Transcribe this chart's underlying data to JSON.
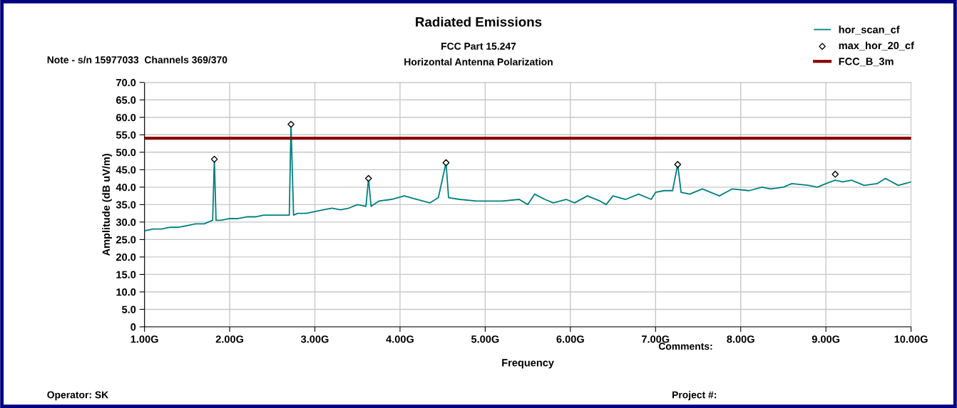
{
  "chart_data": {
    "type": "line",
    "title": "Radiated Emissions",
    "subtitle": "FCC Part 15.247\nHorizontal Antenna Polarization",
    "xlabel": "Frequency",
    "ylabel": "Amplitude (dB uV/m)",
    "xlim": [
      1,
      10
    ],
    "xticks": [
      {
        "value": 1,
        "label": "1.00G"
      },
      {
        "value": 2,
        "label": "2.00G"
      },
      {
        "value": 3,
        "label": "3.00G"
      },
      {
        "value": 4,
        "label": "4.00G"
      },
      {
        "value": 5,
        "label": "5.00G"
      },
      {
        "value": 6,
        "label": "6.00G"
      },
      {
        "value": 7,
        "label": "7.00G"
      },
      {
        "value": 8,
        "label": "8.00G"
      },
      {
        "value": 9,
        "label": "9.00G"
      },
      {
        "value": 10,
        "label": "10.00G"
      }
    ],
    "ylim": [
      0,
      70
    ],
    "yticks": [
      0,
      {
        "value": 5,
        "label": "5.0"
      },
      {
        "value": 10,
        "label": "10.0"
      },
      {
        "value": 15,
        "label": "15.0"
      },
      {
        "value": 20,
        "label": "20.0"
      },
      {
        "value": 25,
        "label": "25.0"
      },
      {
        "value": 30,
        "label": "30.0"
      },
      {
        "value": 35,
        "label": "35.0"
      },
      {
        "value": 40,
        "label": "40.0"
      },
      {
        "value": 45,
        "label": "45.0"
      },
      {
        "value": 50,
        "label": "50.0"
      },
      {
        "value": 55,
        "label": "55.0"
      },
      {
        "value": 60,
        "label": "60.0"
      },
      {
        "value": 65,
        "label": "65.0"
      },
      {
        "value": 70,
        "label": "70.0"
      }
    ],
    "grid": true,
    "legend": "top right",
    "series": [
      {
        "name": "hor_scan_cf",
        "color": "#008080",
        "x": [
          1.0,
          1.1,
          1.2,
          1.3,
          1.4,
          1.5,
          1.6,
          1.7,
          1.8,
          1.82,
          1.84,
          1.9,
          2.0,
          2.1,
          2.2,
          2.3,
          2.4,
          2.5,
          2.6,
          2.7,
          2.72,
          2.75,
          2.8,
          2.9,
          3.0,
          3.1,
          3.2,
          3.3,
          3.4,
          3.5,
          3.6,
          3.63,
          3.66,
          3.75,
          3.9,
          4.05,
          4.2,
          4.35,
          4.45,
          4.54,
          4.57,
          4.7,
          4.9,
          5.0,
          5.2,
          5.4,
          5.5,
          5.58,
          5.7,
          5.8,
          5.95,
          6.05,
          6.2,
          6.35,
          6.42,
          6.5,
          6.65,
          6.8,
          6.95,
          7.0,
          7.1,
          7.2,
          7.26,
          7.3,
          7.4,
          7.55,
          7.75,
          7.9,
          8.1,
          8.25,
          8.35,
          8.5,
          8.6,
          8.8,
          8.9,
          9.0,
          9.11,
          9.2,
          9.3,
          9.45,
          9.6,
          9.7,
          9.85,
          10.0
        ],
        "values": [
          27.5,
          28,
          28,
          28.5,
          28.5,
          29,
          29.5,
          29.5,
          30.5,
          48,
          30.5,
          30.5,
          31,
          31,
          31.5,
          31.5,
          32,
          32,
          32,
          32,
          58,
          32,
          32.5,
          32.5,
          33,
          33.5,
          34,
          33.5,
          34,
          35,
          34.5,
          42.5,
          34.5,
          36,
          36.5,
          37.5,
          36.5,
          35.5,
          37,
          47,
          37,
          36.5,
          36,
          36,
          36,
          36.5,
          35,
          38,
          36.5,
          35.5,
          36.5,
          35.5,
          37.5,
          36,
          35,
          37.5,
          36.5,
          38,
          36.5,
          38.5,
          39,
          39,
          46.5,
          38.5,
          38,
          39.5,
          37.5,
          39.5,
          39,
          40,
          39.5,
          40,
          41,
          40.5,
          40,
          41,
          42,
          41.5,
          42,
          40.5,
          41,
          42.5,
          40.5,
          41.5
        ]
      },
      {
        "name": "max_hor_20_cf",
        "type": "scatter",
        "marker": "diamond",
        "color": "#000000",
        "x": [
          1.82,
          2.72,
          3.63,
          4.54,
          7.26,
          9.11
        ],
        "values": [
          48,
          58,
          42.5,
          47,
          46.5,
          43.7
        ]
      },
      {
        "name": "FCC_B_3m",
        "type": "line",
        "color": "#8b0000",
        "x": [
          1,
          10
        ],
        "values": [
          54,
          54
        ]
      }
    ],
    "annotations": [
      "Note - s/n 15977033  Channels 369/370",
      "Comments:",
      "Operator: SK",
      "Project #:"
    ]
  }
}
